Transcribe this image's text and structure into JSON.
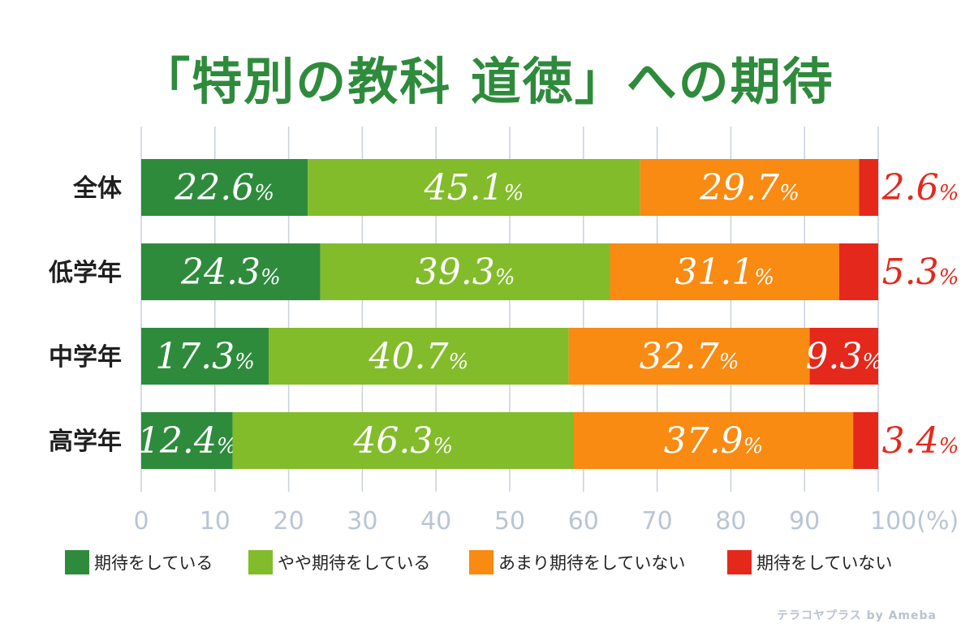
{
  "title": "「特別の教科 道徳」への期待",
  "chart_data": {
    "type": "bar",
    "orientation": "horizontal",
    "stacked": true,
    "title": "「特別の教科 道徳」への期待",
    "categories": [
      "全体",
      "低学年",
      "中学年",
      "高学年"
    ],
    "series": [
      {
        "name": "期待をしている",
        "color": "#2e8b3c",
        "values": [
          22.6,
          24.3,
          17.3,
          12.4
        ]
      },
      {
        "name": "やや期待をしている",
        "color": "#82bc2a",
        "values": [
          45.1,
          39.3,
          40.7,
          46.3
        ]
      },
      {
        "name": "あまり期待をしていない",
        "color": "#f98a12",
        "values": [
          29.7,
          31.1,
          32.7,
          37.9
        ]
      },
      {
        "name": "期待をしていない",
        "color": "#e5281c",
        "values": [
          2.6,
          5.3,
          9.3,
          3.4
        ]
      }
    ],
    "xlim": [
      0,
      100
    ],
    "x_ticks": [
      "0",
      "10",
      "20",
      "30",
      "40",
      "50",
      "60",
      "70",
      "80",
      "90",
      "100(%)"
    ],
    "value_suffix": "%",
    "grid": true,
    "legend_position": "bottom"
  },
  "watermark": "テラコヤプラス by Ameba"
}
